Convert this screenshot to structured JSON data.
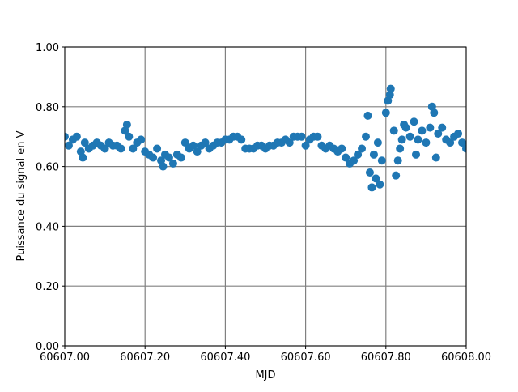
{
  "chart_data": {
    "type": "scatter",
    "xlabel": "MJD",
    "ylabel": "Puissance du signal en V",
    "color": "#1f77b4",
    "grid": true,
    "xlim": [
      60607.0,
      60608.0
    ],
    "xticks": [
      {
        "value": 60607.0,
        "label": "60607.00"
      },
      {
        "value": 60607.2,
        "label": "60607.20"
      },
      {
        "value": 60607.4,
        "label": "60607.40"
      },
      {
        "value": 60607.6,
        "label": "60607.60"
      },
      {
        "value": 60607.8,
        "label": "60607.80"
      },
      {
        "value": 60608.0,
        "label": "60608.00"
      }
    ],
    "ylim": [
      0,
      1
    ],
    "yticks": [
      {
        "value": 0,
        "label": "0.00"
      },
      {
        "value": 0.2,
        "label": "0.20"
      },
      {
        "value": 0.4,
        "label": "0.40"
      },
      {
        "value": 0.6,
        "label": "0.60"
      },
      {
        "value": 0.8,
        "label": "0.80"
      },
      {
        "value": 1,
        "label": "1.00"
      }
    ],
    "x": [
      60607.0,
      60607.01,
      60607.02,
      60607.03,
      60607.04,
      60607.05,
      60607.06,
      60607.07,
      60607.08,
      60607.09,
      60607.1,
      60607.11,
      60607.12,
      60607.13,
      60607.14,
      60607.15,
      60607.16,
      60607.17,
      60607.18,
      60607.19,
      60607.2,
      60607.21,
      60607.22,
      60607.23,
      60607.24,
      60607.25,
      60607.26,
      60607.27,
      60607.28,
      60607.29,
      60607.3,
      60607.31,
      60607.32,
      60607.33,
      60607.34,
      60607.35,
      60607.36,
      60607.37,
      60607.38,
      60607.39,
      60607.4,
      60607.41,
      60607.42,
      60607.43,
      60607.44,
      60607.45,
      60607.46,
      60607.47,
      60607.48,
      60607.49,
      60607.5,
      60607.51,
      60607.52,
      60607.53,
      60607.54,
      60607.55,
      60607.56,
      60607.57,
      60607.58,
      60607.59,
      60607.6,
      60607.61,
      60607.62,
      60607.63,
      60607.64,
      60607.65,
      60607.66,
      60607.67,
      60607.68,
      60607.69,
      60607.7,
      60607.71,
      60607.72,
      60607.73,
      60607.74,
      60607.75,
      60607.76,
      60607.77,
      60607.78,
      60607.79,
      60607.8,
      60607.81,
      60607.82,
      60607.83,
      60607.84,
      60607.85,
      60607.86,
      60607.87,
      60607.88,
      60607.89,
      60607.9,
      60607.91,
      60607.92,
      60607.93,
      60607.94,
      60607.95,
      60607.96,
      60607.97,
      60607.98,
      60607.99,
      60608.0,
      60607.755,
      60607.765,
      60607.775,
      60607.785,
      60607.805,
      60607.812,
      60607.825,
      60607.835,
      60607.845,
      60607.875,
      60607.915,
      60607.925,
      60607.155,
      60607.045,
      60607.245
    ],
    "values": [
      0.7,
      0.67,
      0.69,
      0.7,
      0.65,
      0.68,
      0.66,
      0.67,
      0.68,
      0.67,
      0.66,
      0.68,
      0.67,
      0.67,
      0.66,
      0.72,
      0.7,
      0.66,
      0.68,
      0.69,
      0.65,
      0.64,
      0.63,
      0.66,
      0.62,
      0.64,
      0.63,
      0.61,
      0.64,
      0.63,
      0.68,
      0.66,
      0.67,
      0.65,
      0.67,
      0.68,
      0.66,
      0.67,
      0.68,
      0.68,
      0.69,
      0.69,
      0.7,
      0.7,
      0.69,
      0.66,
      0.66,
      0.66,
      0.67,
      0.67,
      0.66,
      0.67,
      0.67,
      0.68,
      0.68,
      0.69,
      0.68,
      0.7,
      0.7,
      0.7,
      0.67,
      0.69,
      0.7,
      0.7,
      0.67,
      0.66,
      0.67,
      0.66,
      0.65,
      0.66,
      0.63,
      0.61,
      0.62,
      0.64,
      0.66,
      0.7,
      0.58,
      0.64,
      0.68,
      0.62,
      0.78,
      0.84,
      0.72,
      0.62,
      0.69,
      0.73,
      0.7,
      0.75,
      0.69,
      0.72,
      0.68,
      0.73,
      0.78,
      0.71,
      0.73,
      0.69,
      0.68,
      0.7,
      0.71,
      0.68,
      0.66,
      0.77,
      0.53,
      0.56,
      0.54,
      0.82,
      0.86,
      0.57,
      0.66,
      0.74,
      0.64,
      0.8,
      0.63,
      0.74,
      0.63,
      0.6
    ]
  }
}
